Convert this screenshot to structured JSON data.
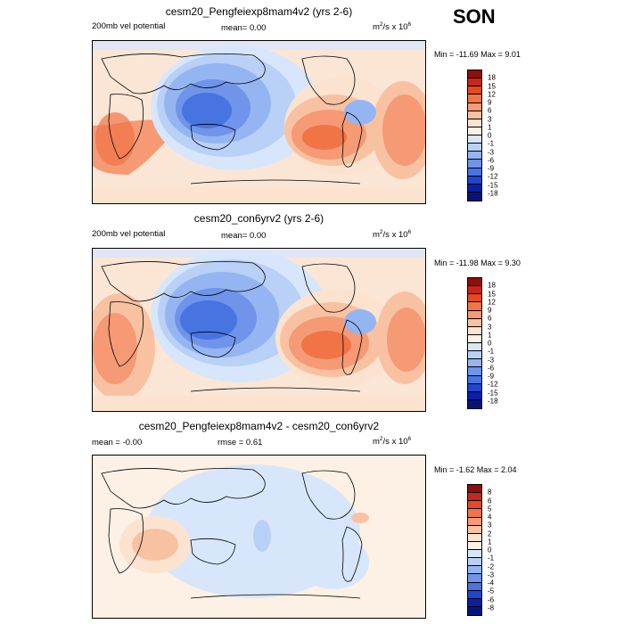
{
  "season": "SON",
  "panels": [
    {
      "title": "cesm20_Pengfeiexp8mam4v2 (yrs 2-6)",
      "left_label": "200mb vel potential",
      "center_label": "mean=   0.00",
      "units": {
        "base": "m",
        "exp1": "2",
        "mid": "/s x 10",
        "exp2": "6"
      },
      "minmax": "Min = -11.69 Max =   9.01",
      "colorbar_labels": [
        "18",
        "15",
        "12",
        "9",
        "6",
        "3",
        "1",
        "0",
        "-1",
        "-3",
        "-6",
        "-9",
        "-12",
        "-15",
        "-18"
      ],
      "colorbar_colors": [
        "#8e0f0b",
        "#c8261a",
        "#e6491f",
        "#f07446",
        "#f59a74",
        "#f8c2a2",
        "#fbe3d0",
        "#fdf0e5",
        "#d8e6fb",
        "#b9d0f7",
        "#95b5f2",
        "#6f94ea",
        "#4874e2",
        "#2145d0",
        "#0b1fa6",
        "#06147a"
      ]
    },
    {
      "title": "cesm20_con6yrv2 (yrs 2-6)",
      "left_label": "200mb vel potential",
      "center_label": "mean=   0.00",
      "units": {
        "base": "m",
        "exp1": "2",
        "mid": "/s x 10",
        "exp2": "6"
      },
      "minmax": "Min = -11.98 Max =   9.30",
      "colorbar_labels": [
        "18",
        "15",
        "12",
        "9",
        "6",
        "3",
        "1",
        "0",
        "-1",
        "-3",
        "-6",
        "-9",
        "-12",
        "-15",
        "-18"
      ],
      "colorbar_colors": [
        "#8e0f0b",
        "#c8261a",
        "#e6491f",
        "#f07446",
        "#f59a74",
        "#f8c2a2",
        "#fbe3d0",
        "#fdf0e5",
        "#d8e6fb",
        "#b9d0f7",
        "#95b5f2",
        "#6f94ea",
        "#4874e2",
        "#2145d0",
        "#0b1fa6",
        "#06147a"
      ]
    },
    {
      "title": "cesm20_Pengfeiexp8mam4v2 - cesm20_con6yrv2",
      "left_label": "mean =  -0.00",
      "center_label": "rmse =   0.61",
      "units": {
        "base": "m",
        "exp1": "2",
        "mid": "/s x 10",
        "exp2": "6"
      },
      "minmax": "Min =  -1.62 Max =   2.04",
      "colorbar_labels": [
        "8",
        "6",
        "5",
        "4",
        "3",
        "2",
        "1",
        "0",
        "-1",
        "-2",
        "-3",
        "-4",
        "-5",
        "-6",
        "-8"
      ],
      "colorbar_colors": [
        "#8e0f0b",
        "#c8261a",
        "#e6491f",
        "#f07446",
        "#f59a74",
        "#f8c2a2",
        "#fbe3d0",
        "#fdf0e5",
        "#d8e6fb",
        "#b9d0f7",
        "#95b5f2",
        "#6f94ea",
        "#4874e2",
        "#2145d0",
        "#0b1fa6",
        "#06147a"
      ]
    }
  ]
}
